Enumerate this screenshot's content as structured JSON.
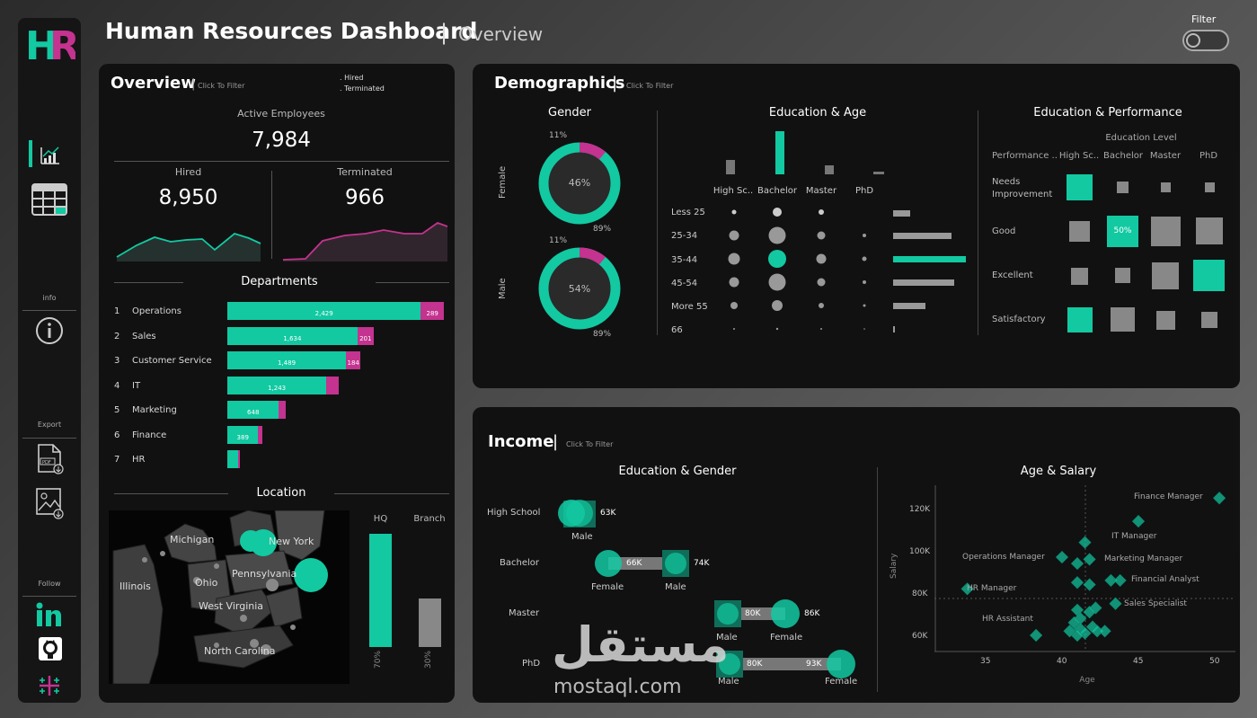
{
  "header": {
    "logo": "HR",
    "title": "Human Resources Dashboard",
    "separator": "|",
    "subtitle": "Overview",
    "filter_label": "Filter"
  },
  "sidebar": {
    "info_label": "info",
    "export_label": "Export",
    "follow_label": "Follow"
  },
  "overview": {
    "title": "Overview",
    "click_filter": "Click To Filter",
    "legend_hired": "Hired",
    "legend_terminated": "Terminated",
    "active_label": "Active Employees",
    "active_value": "7,984",
    "hired_label": "Hired",
    "hired_value": "8,950",
    "terminated_label": "Terminated",
    "terminated_value": "966",
    "departments_title": "Departments",
    "departments": [
      {
        "rank": "1",
        "name": "Operations",
        "hired": 2429,
        "hired_label": "2,429",
        "term": 289,
        "term_label": "289"
      },
      {
        "rank": "2",
        "name": "Sales",
        "hired": 1634,
        "hired_label": "1,634",
        "term": 201,
        "term_label": "201"
      },
      {
        "rank": "3",
        "name": "Customer Service",
        "hired": 1489,
        "hired_label": "1,489",
        "term": 184,
        "term_label": "184"
      },
      {
        "rank": "4",
        "name": "IT",
        "hired": 1243,
        "hired_label": "1,243",
        "term": 150,
        "term_label": ""
      },
      {
        "rank": "5",
        "name": "Marketing",
        "hired": 648,
        "hired_label": "648",
        "term": 80,
        "term_label": ""
      },
      {
        "rank": "6",
        "name": "Finance",
        "hired": 389,
        "hired_label": "389",
        "term": 48,
        "term_label": ""
      },
      {
        "rank": "7",
        "name": "HR",
        "hired": 140,
        "hired_label": "",
        "term": 20,
        "term_label": ""
      }
    ],
    "location_title": "Location",
    "hq_label": "HQ",
    "branch_label": "Branch",
    "hq_pct": 70,
    "hq_pct_label": "70%",
    "branch_pct": 30,
    "branch_pct_label": "30%",
    "map_states": [
      "Michigan",
      "New York",
      "Illinois",
      "Ohio",
      "Pennsylvania",
      "West Virginia",
      "North Carolina"
    ]
  },
  "demographics": {
    "title": "Demographics",
    "click_filter": "Click To Filter",
    "gender_title": "Gender",
    "female_label": "Female",
    "male_label": "Male",
    "female_center": "46%",
    "female_minor": "11%",
    "female_major": "89%",
    "female_minor_frac": 0.11,
    "male_center": "54%",
    "male_minor": "11%",
    "male_major": "89%",
    "male_minor_frac": 0.11,
    "edu_age_title": "Education & Age",
    "edu_levels": [
      "High Sc..",
      "Bachelor",
      "Master",
      "PhD"
    ],
    "age_groups": [
      "Less 25",
      "25-34",
      "35-44",
      "45-54",
      "More 55",
      "66"
    ],
    "edu_perf_title": "Education & Performance",
    "edu_level_label": "Education Level",
    "perf_col_label": "Performance ..",
    "perf_cols": [
      "High Sc..",
      "Bachelor",
      "Master",
      "PhD"
    ],
    "perf_rows": [
      "Needs Improvement",
      "Good",
      "Excellent",
      "Satisfactory"
    ],
    "perf_highlight_label": "50%"
  },
  "income": {
    "title": "Income",
    "click_filter": "Click To Filter",
    "edu_gender_title": "Education & Gender",
    "rows": [
      {
        "level": "High School",
        "a_label": "Male",
        "b_label": "",
        "value_a": "63K",
        "value_b": ""
      },
      {
        "level": "Bachelor",
        "a_label": "Female",
        "b_label": "Male",
        "value_a": "66K",
        "value_b": "74K"
      },
      {
        "level": "Master",
        "a_label": "Male",
        "b_label": "Female",
        "value_a": "80K",
        "value_b": "86K"
      },
      {
        "level": "PhD",
        "a_label": "Male",
        "b_label": "Female",
        "value_a": "80K",
        "value_b": "93K"
      }
    ],
    "age_salary_title": "Age & Salary",
    "x_label": "Age",
    "y_label": "Salary",
    "x_ticks": [
      "35",
      "40",
      "45",
      "50"
    ],
    "y_ticks": [
      "120K",
      "100K",
      "80K",
      "60K"
    ],
    "job_labels": [
      "Finance Manager",
      "IT Manager",
      "Operations Manager",
      "Marketing Manager",
      "Financial Analyst",
      "HR Manager",
      "Sales Specialist",
      "HR Assistant"
    ]
  },
  "watermark": {
    "arabic": "مستقل",
    "latin": "mostaql.com"
  },
  "chart_data": [
    {
      "type": "bar",
      "title": "Departments",
      "categories": [
        "Operations",
        "Sales",
        "Customer Service",
        "IT",
        "Marketing",
        "Finance",
        "HR"
      ],
      "series": [
        {
          "name": "Hired",
          "values": [
            2429,
            1634,
            1489,
            1243,
            648,
            389,
            140
          ]
        },
        {
          "name": "Terminated",
          "values": [
            289,
            201,
            184,
            150,
            80,
            48,
            20
          ]
        }
      ]
    },
    {
      "type": "bar",
      "title": "Location",
      "categories": [
        "HQ",
        "Branch"
      ],
      "values": [
        70,
        30
      ]
    },
    {
      "type": "scatter",
      "title": "Age & Salary",
      "xlabel": "Age",
      "ylabel": "Salary",
      "xlim": [
        32,
        51
      ],
      "ylim": [
        55000,
        128000
      ],
      "series": [
        {
          "values": [
            [
              50.3,
              125000
            ],
            [
              45,
              114000
            ],
            [
              41.5,
              104000
            ],
            [
              40,
              97000
            ],
            [
              41,
              94000
            ],
            [
              41.8,
              96000
            ],
            [
              43.2,
              86000
            ],
            [
              43.8,
              86000
            ],
            [
              41,
              85000
            ],
            [
              41.8,
              84000
            ],
            [
              33.8,
              82000
            ],
            [
              43.5,
              75000
            ],
            [
              42.2,
              73000
            ],
            [
              41,
              72000
            ],
            [
              41.8,
              71000
            ],
            [
              41.2,
              68000
            ],
            [
              40.8,
              66000
            ],
            [
              42,
              64000
            ],
            [
              41.2,
              63000
            ],
            [
              40.5,
              62000
            ],
            [
              41.5,
              61000
            ],
            [
              42.3,
              62000
            ],
            [
              41,
              60000
            ],
            [
              38.3,
              60000
            ],
            [
              42.8,
              62000
            ]
          ]
        }
      ]
    }
  ]
}
